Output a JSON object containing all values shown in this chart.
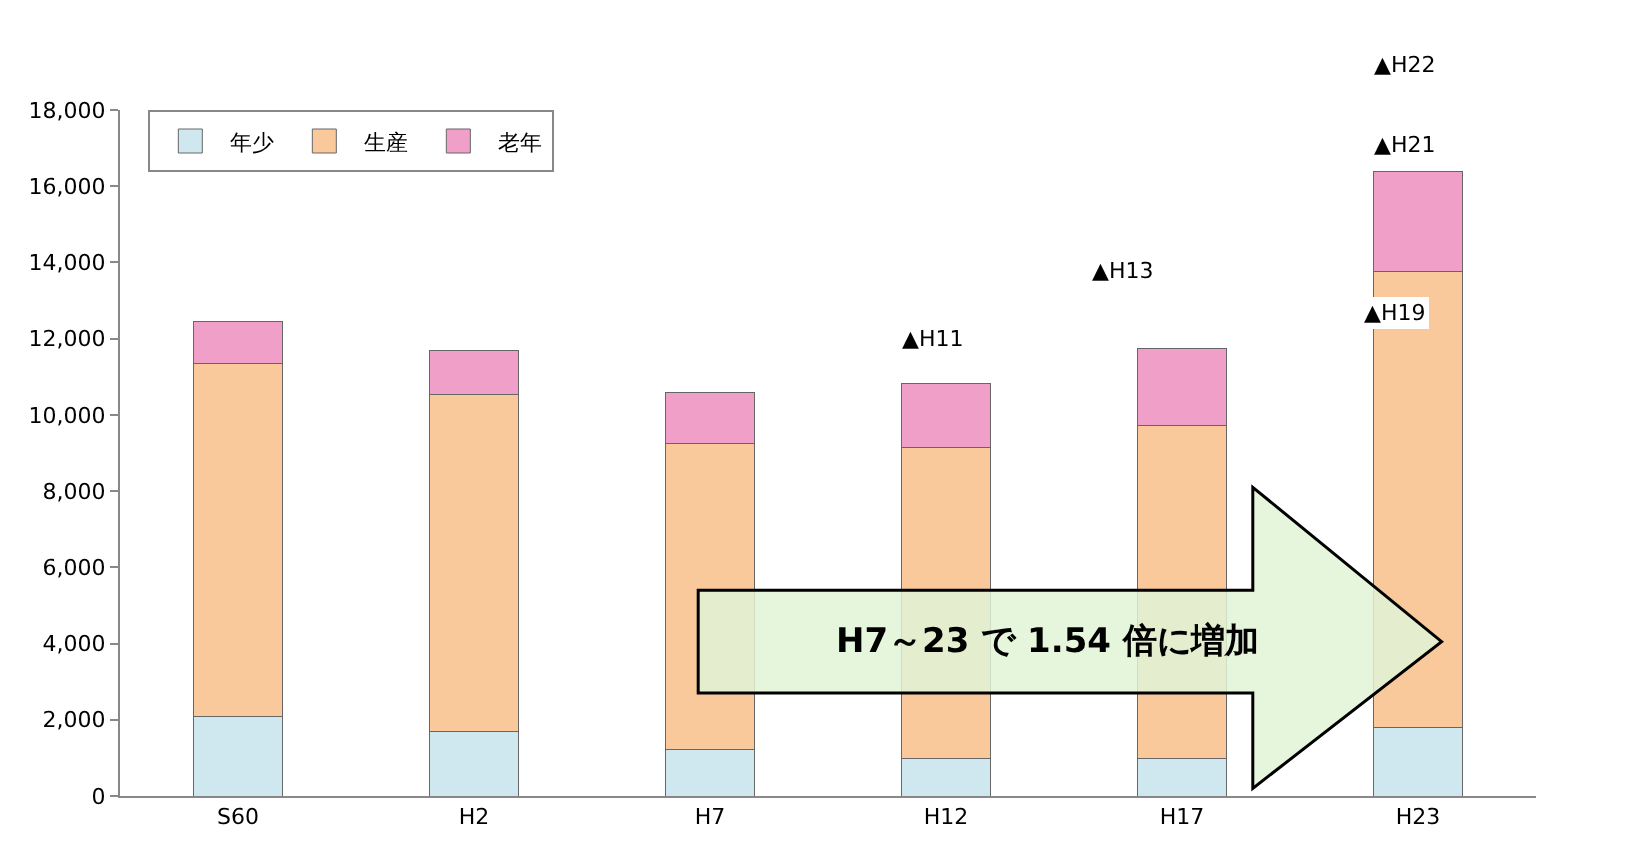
{
  "chart_data": {
    "type": "bar",
    "stacked": true,
    "categories": [
      "S60",
      "H2",
      "H7",
      "H12",
      "H17",
      "H23"
    ],
    "series": [
      {
        "name": "年少",
        "color": "#cfe8f0",
        "values": [
          2080,
          1680,
          1220,
          980,
          980,
          1790
        ]
      },
      {
        "name": "生産",
        "color": "#f9c89b",
        "values": [
          9260,
          8850,
          8040,
          8160,
          8740,
          11980
        ]
      },
      {
        "name": "老年",
        "color": "#f0a0c8",
        "values": [
          1100,
          1160,
          1330,
          1680,
          2030,
          2610
        ]
      }
    ],
    "ylim": [
      0,
      18000
    ],
    "yticks": [
      {
        "value": 0,
        "label": "0"
      },
      {
        "value": 2000,
        "label": "2,000"
      },
      {
        "value": 4000,
        "label": "4,000"
      },
      {
        "value": 6000,
        "label": "6,000"
      },
      {
        "value": 8000,
        "label": "8,000"
      },
      {
        "value": 10000,
        "label": "10,000"
      },
      {
        "value": 12000,
        "label": "12,000"
      },
      {
        "value": 14000,
        "label": "14,000"
      },
      {
        "value": 16000,
        "label": "16,000"
      },
      {
        "value": 18000,
        "label": "18,000"
      }
    ],
    "grid": false,
    "legend": "top left",
    "annotations": [
      "▲H11",
      "▲H13",
      "▲H19",
      "▲H21",
      "▲H22",
      "H7～23 で 1.54 倍に増加"
    ]
  }
}
